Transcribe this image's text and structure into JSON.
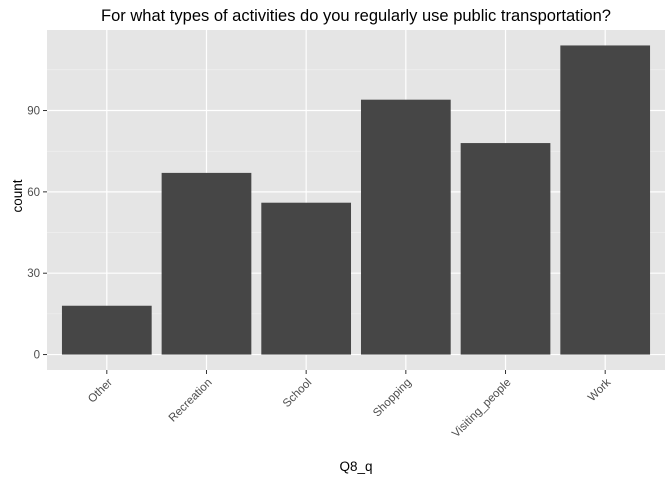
{
  "chart_data": {
    "type": "bar",
    "title": "For what types of activities do you regularly use public transportation?",
    "xlabel": "Q8_q",
    "ylabel": "count",
    "categories": [
      "Other",
      "Recreation",
      "School",
      "Shopping",
      "Visiting_people",
      "Work"
    ],
    "values": [
      18,
      67,
      56,
      94,
      78,
      114
    ],
    "y_ticks": [
      0,
      30,
      60,
      90
    ],
    "y_tick_labels": [
      "0",
      "30",
      "60",
      "90"
    ],
    "ylim": [
      -5.7,
      119.7
    ],
    "grid": true,
    "colors": {
      "panel_background": "#e5e5e5",
      "grid_major": "#ffffff",
      "grid_minor": "#f2f2f2",
      "bar_fill": "#464646",
      "tick_mark": "#333333"
    }
  }
}
